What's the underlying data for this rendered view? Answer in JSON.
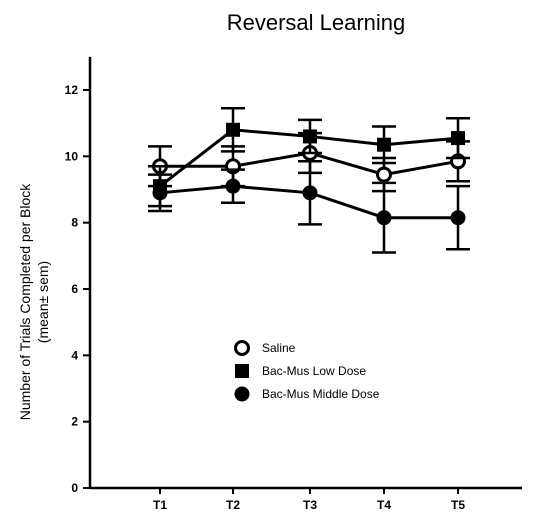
{
  "chart_data": {
    "type": "line",
    "title": "Reversal Learning",
    "ylabel_line1": "Number of Trials Completed per Block",
    "ylabel_line2": "(mean± sem)",
    "xlabel": "",
    "categories": [
      "T1",
      "T2",
      "T3",
      "T4",
      "T5"
    ],
    "ylim": [
      0,
      13
    ],
    "yticks": [
      0,
      2,
      4,
      6,
      8,
      10,
      12
    ],
    "grid": false,
    "legend_position": "lower-center",
    "series": [
      {
        "name": "Saline",
        "marker": "open-circle",
        "values": [
          9.7,
          9.7,
          10.1,
          9.45,
          9.85
        ],
        "errors": [
          0.6,
          0.6,
          0.6,
          0.5,
          0.6
        ]
      },
      {
        "name": "Bac-Mus Low Dose",
        "marker": "square",
        "values": [
          9.1,
          10.8,
          10.6,
          10.35,
          10.55
        ],
        "errors": [
          0.6,
          0.65,
          0.5,
          0.55,
          0.6
        ]
      },
      {
        "name": "Bac-Mus Middle Dose",
        "marker": "filled-circle",
        "values": [
          8.9,
          9.1,
          8.9,
          8.15,
          8.15
        ],
        "errors": [
          0.55,
          0.5,
          0.95,
          1.05,
          0.95
        ]
      }
    ]
  }
}
